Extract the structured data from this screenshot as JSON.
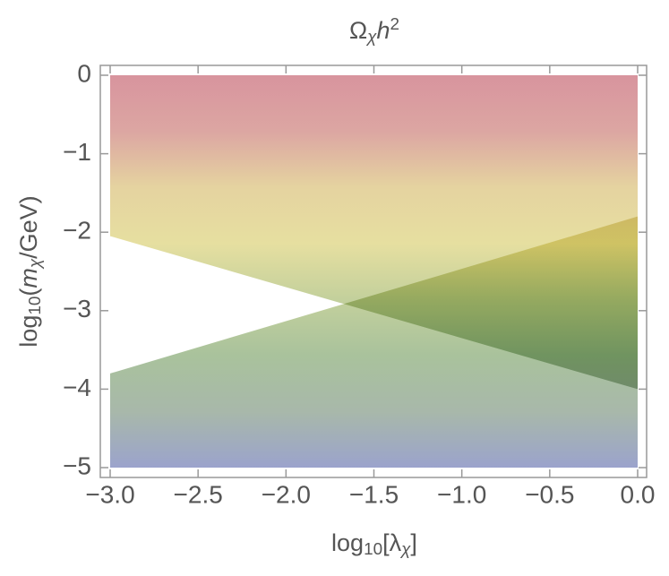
{
  "chart_data": {
    "type": "region",
    "title": [
      {
        "text": "Ω"
      },
      {
        "text": "χ",
        "pos": "sub",
        "italic": true
      },
      {
        "text": "h",
        "italic": true
      },
      {
        "text": "2",
        "pos": "sup"
      }
    ],
    "xlabel": [
      {
        "text": "log"
      },
      {
        "text": "10",
        "pos": "sub"
      },
      {
        "text": "[λ"
      },
      {
        "text": "χ",
        "pos": "sub",
        "italic": true
      },
      {
        "text": "]"
      }
    ],
    "ylabel": [
      {
        "text": "log"
      },
      {
        "text": "10",
        "pos": "sub"
      },
      {
        "text": "("
      },
      {
        "text": "m",
        "italic": true
      },
      {
        "text": "χ",
        "pos": "sub",
        "italic": true
      },
      {
        "text": "/GeV)"
      }
    ],
    "regions": [
      {
        "side": "above",
        "x": [
          -3,
          0
        ],
        "y": [
          -2.05,
          -4.0
        ]
      },
      {
        "side": "below",
        "x": [
          -3,
          0
        ],
        "y": [
          -3.8,
          -1.8
        ]
      }
    ],
    "colormap": [
      "#d8949e",
      "#dca6a2",
      "#e5d3a0",
      "#e6dfa0",
      "#c3d09c",
      "#a9c29c",
      "#a8b8aa",
      "#9ba3cc"
    ],
    "xlim": [
      -3,
      0
    ],
    "ylim": [
      -5,
      0
    ],
    "xticks": [
      {
        "value": -3,
        "label": "−3.0"
      },
      {
        "value": -2.5,
        "label": "−2.5"
      },
      {
        "value": -2,
        "label": "−2.0"
      },
      {
        "value": -1.5,
        "label": "−1.5"
      },
      {
        "value": -1,
        "label": "−1.0"
      },
      {
        "value": -0.5,
        "label": "−0.5"
      },
      {
        "value": 0,
        "label": "0.0"
      }
    ],
    "yticks": [
      0,
      {
        "value": -1,
        "label": "−1"
      },
      {
        "value": -2,
        "label": "−2"
      },
      {
        "value": -3,
        "label": "−3"
      },
      {
        "value": -4,
        "label": "−4"
      },
      {
        "value": -5,
        "label": "−5"
      }
    ]
  }
}
